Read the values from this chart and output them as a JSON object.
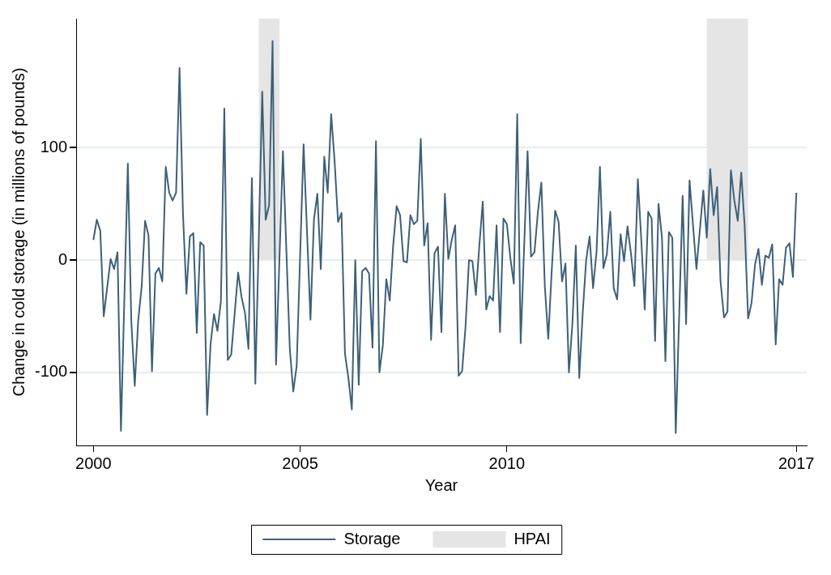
{
  "chart_data": {
    "type": "line",
    "xlabel": "Year",
    "ylabel": "Change in cold storage (in millions of pounds)",
    "xlim": [
      "1999-08",
      "2017-04"
    ],
    "xticks": [
      "2000",
      "2005",
      "2010",
      "2017"
    ],
    "ylim": [
      -165,
      215
    ],
    "yticks": [
      -100,
      0,
      100
    ],
    "grid": "y",
    "legend": "bottom",
    "marker": "none",
    "line_style": "solid",
    "bands": [
      {
        "axis": "x",
        "from": "2004-01",
        "to": "2004-07",
        "label": "HPAI",
        "color": "#e5e5e5"
      },
      {
        "axis": "x",
        "from": "2014-11",
        "to": "2015-11",
        "color": "#e5e5e5"
      }
    ],
    "series": [
      {
        "name": "Storage",
        "color": "#3e6078",
        "x": [
          "2000-01",
          "2000-02",
          "2000-03",
          "2000-04",
          "2000-06",
          "2000-07",
          "2000-08",
          "2000-09",
          "2000-11",
          "2000-12",
          "2001-01",
          "2001-02",
          "2001-03",
          "2001-04",
          "2001-05",
          "2001-06",
          "2001-07",
          "2001-08",
          "2001-09",
          "2001-10",
          "2001-11",
          "2001-12",
          "2002-01",
          "2002-02",
          "2002-03",
          "2002-04",
          "2002-05",
          "2002-06",
          "2002-07",
          "2002-08",
          "2002-09",
          "2002-10",
          "2002-11",
          "2002-12",
          "2003-01",
          "2003-02",
          "2003-03",
          "2003-04",
          "2003-05",
          "2003-07",
          "2003-08",
          "2003-09",
          "2003-10",
          "2003-11",
          "2003-12",
          "2004-02",
          "2004-03",
          "2004-04",
          "2004-05",
          "2004-06",
          "2004-08",
          "2004-10",
          "2004-11",
          "2004-12",
          "2005-02",
          "2005-04",
          "2005-05",
          "2005-06",
          "2005-07",
          "2005-08",
          "2005-09",
          "2005-10",
          "2005-11",
          "2005-12",
          "2006-01",
          "2006-02",
          "2006-03",
          "2006-04",
          "2006-05",
          "2006-06",
          "2006-07",
          "2006-08",
          "2006-09",
          "2006-10",
          "2006-11",
          "2006-12",
          "2007-01",
          "2007-02",
          "2007-03",
          "2007-04",
          "2007-05",
          "2007-06",
          "2007-07",
          "2007-08",
          "2007-09",
          "2007-10",
          "2007-11",
          "2007-12",
          "2008-01",
          "2008-02",
          "2008-03",
          "2008-04",
          "2008-05",
          "2008-06",
          "2008-07",
          "2008-08",
          "2008-09",
          "2008-10",
          "2008-11",
          "2008-12",
          "2009-01",
          "2009-02",
          "2009-03",
          "2009-04",
          "2009-05",
          "2009-06",
          "2009-07",
          "2009-08",
          "2009-09",
          "2009-10",
          "2009-11",
          "2009-12",
          "2010-01",
          "2010-02",
          "2010-03",
          "2010-04",
          "2010-05",
          "2010-07",
          "2010-08",
          "2010-09",
          "2010-10",
          "2010-11",
          "2010-12",
          "2011-01",
          "2011-02",
          "2011-03",
          "2011-04",
          "2011-05",
          "2011-06",
          "2011-07",
          "2011-08",
          "2011-09",
          "2011-10",
          "2011-11",
          "2011-12",
          "2012-01",
          "2012-02",
          "2012-03",
          "2012-04",
          "2012-05",
          "2012-06",
          "2012-07",
          "2012-08",
          "2012-09",
          "2012-10",
          "2012-11",
          "2012-12",
          "2013-01",
          "2013-02",
          "2013-03",
          "2013-04",
          "2013-05",
          "2013-06",
          "2013-07",
          "2013-08",
          "2013-09",
          "2013-10",
          "2013-11",
          "2013-12",
          "2014-01",
          "2014-02",
          "2014-04",
          "2014-05",
          "2014-06",
          "2014-08",
          "2014-10",
          "2014-11",
          "2014-12",
          "2015-01",
          "2015-02",
          "2015-03",
          "2015-04",
          "2015-05",
          "2015-06",
          "2015-07",
          "2015-08",
          "2015-09",
          "2015-10",
          "2015-11",
          "2015-12",
          "2016-01",
          "2016-02",
          "2016-03",
          "2016-04",
          "2016-05",
          "2016-06",
          "2016-07",
          "2016-08",
          "2016-09",
          "2016-10",
          "2016-11",
          "2016-12",
          "2017-01"
        ],
        "values": [
          18,
          36,
          26,
          -50,
          1,
          -8,
          7,
          -152,
          86,
          -54,
          -112,
          -54,
          -24,
          35,
          22,
          -99,
          -12,
          -7,
          -19,
          83,
          60,
          53,
          60,
          171,
          41,
          -30,
          21,
          24,
          -65,
          16,
          13,
          -138,
          -75,
          -48,
          -63,
          -37,
          135,
          -89,
          -84,
          -11,
          -33,
          -47,
          -79,
          73,
          -110,
          150,
          36,
          49,
          195,
          -93,
          97,
          -79,
          -117,
          -94,
          103,
          -53,
          36,
          59,
          -8,
          92,
          60,
          130,
          88,
          34,
          42,
          -83,
          -105,
          -133,
          0,
          -111,
          -10,
          -7,
          -12,
          -78,
          106,
          -100,
          -76,
          -17,
          -36,
          13,
          48,
          40,
          -1,
          -2,
          40,
          32,
          35,
          108,
          13,
          33,
          -71,
          6,
          12,
          -64,
          59,
          1,
          18,
          31,
          -103,
          -99,
          -59,
          0,
          -1,
          -31,
          13,
          52,
          -44,
          -32,
          -36,
          31,
          -64,
          37,
          32,
          2,
          -21,
          130,
          -74,
          97,
          3,
          7,
          43,
          69,
          -23,
          -70,
          -10,
          44,
          34,
          -19,
          -3,
          -100,
          -57,
          13,
          -105,
          -47,
          0,
          21,
          -25,
          7,
          83,
          -7,
          5,
          43,
          -25,
          -35,
          23,
          -1,
          30,
          6,
          -23,
          72,
          18,
          -44,
          43,
          37,
          -72,
          50,
          20,
          -90,
          25,
          20,
          -154,
          57,
          -57,
          71,
          -8,
          62,
          20,
          81,
          40,
          65,
          -19,
          -51,
          -46,
          80,
          53,
          35,
          78,
          30,
          -52,
          -38,
          -4,
          10,
          -22,
          4,
          2,
          14,
          -75,
          -17,
          -22,
          11,
          15,
          -15,
          60
        ]
      }
    ]
  }
}
